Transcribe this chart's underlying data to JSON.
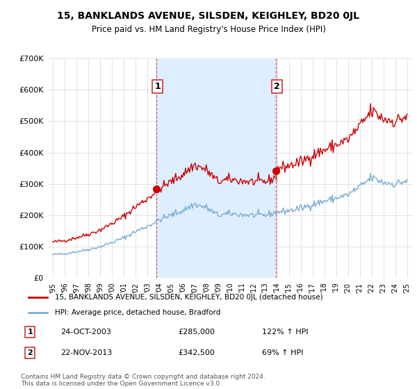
{
  "title": "15, BANKLANDS AVENUE, SILSDEN, KEIGHLEY, BD20 0JL",
  "subtitle": "Price paid vs. HM Land Registry's House Price Index (HPI)",
  "legend_label_red": "15, BANKLANDS AVENUE, SILSDEN, KEIGHLEY, BD20 0JL (detached house)",
  "legend_label_blue": "HPI: Average price, detached house, Bradford",
  "annotation1_label": "1",
  "annotation1_date": "24-OCT-2003",
  "annotation1_price": "£285,000",
  "annotation1_hpi": "122% ↑ HPI",
  "annotation2_label": "2",
  "annotation2_date": "22-NOV-2013",
  "annotation2_price": "£342,500",
  "annotation2_hpi": "69% ↑ HPI",
  "footer": "Contains HM Land Registry data © Crown copyright and database right 2024.\nThis data is licensed under the Open Government Licence v3.0.",
  "ylim": [
    0,
    700000
  ],
  "yticks": [
    0,
    100000,
    200000,
    300000,
    400000,
    500000,
    600000,
    700000
  ],
  "red_color": "#cc0000",
  "blue_color": "#7aadcf",
  "shade_color": "#ddeeff",
  "dashed_color": "#dd4444",
  "background_color": "#ffffff",
  "grid_color": "#dddddd",
  "sale1_year": 2003.79,
  "sale1_price": 285000,
  "sale2_year": 2013.88,
  "sale2_price": 342500,
  "xmin": 1995.0,
  "xmax": 2025.5
}
